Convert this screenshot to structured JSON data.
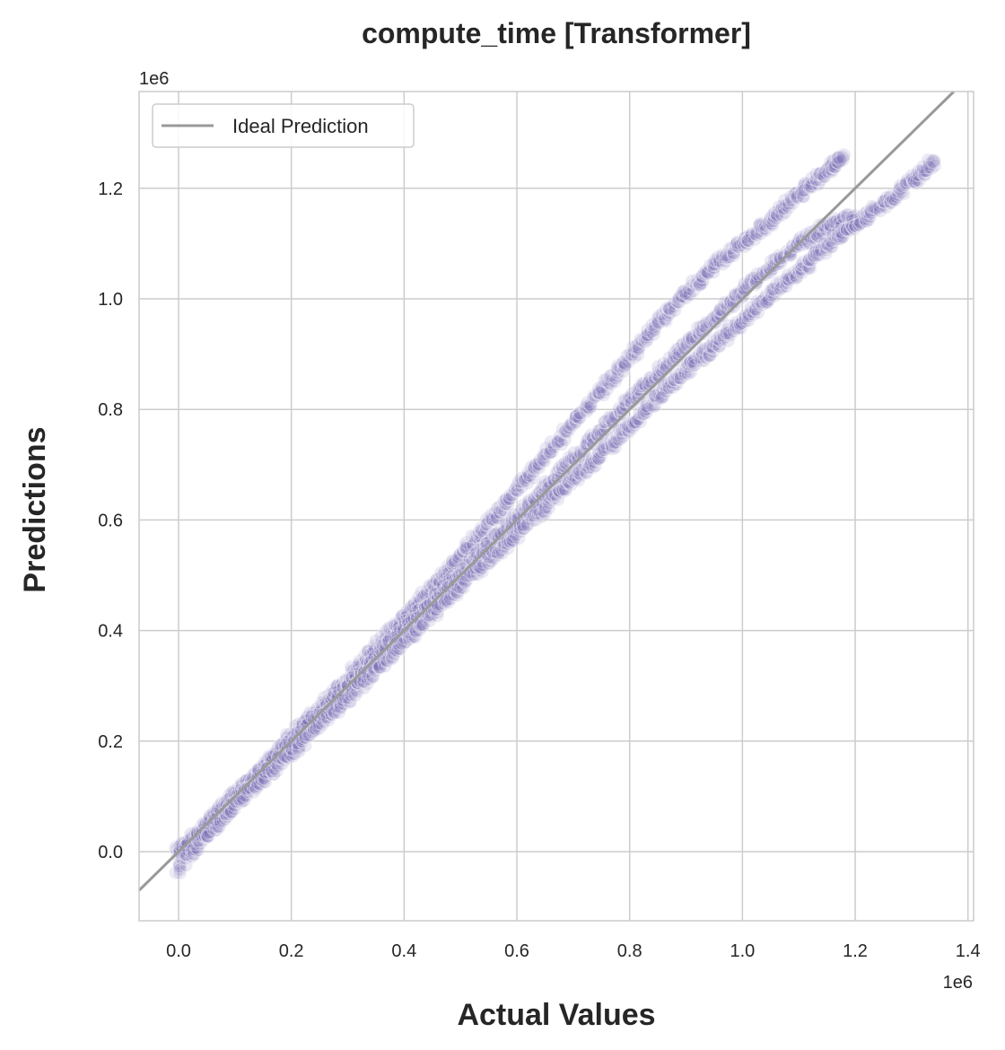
{
  "chart_data": {
    "type": "scatter",
    "title": "compute_time [Transformer]",
    "xlabel": "Actual Values",
    "ylabel": "Predictions",
    "x_offset_label": "1e6",
    "y_offset_label": "1e6",
    "xlim": [
      -0.07,
      1.41
    ],
    "ylim": [
      -0.125,
      1.375
    ],
    "xticks": [
      0.0,
      0.2,
      0.4,
      0.6,
      0.8,
      1.0,
      1.2,
      1.4
    ],
    "xtick_labels": [
      "0.0",
      "0.2",
      "0.4",
      "0.6",
      "0.8",
      "1.0",
      "1.2",
      "1.4"
    ],
    "yticks": [
      0.0,
      0.2,
      0.4,
      0.6,
      0.8,
      1.0,
      1.2
    ],
    "ytick_labels": [
      "0.0",
      "0.2",
      "0.4",
      "0.6",
      "0.8",
      "1.0",
      "1.2"
    ],
    "grid": true,
    "legend": {
      "position": "top-left",
      "entries": [
        "Ideal Prediction"
      ]
    },
    "ideal_line": {
      "name": "Ideal Prediction",
      "slope": 1,
      "intercept": 0,
      "color": "#999999"
    },
    "point_color": "#7b6bb5",
    "point_opacity": 0.15,
    "series": [
      {
        "name": "upper band",
        "x": [
          0.0,
          0.05,
          0.1,
          0.15,
          0.2,
          0.25,
          0.3,
          0.35,
          0.4,
          0.45,
          0.5,
          0.55,
          0.6,
          0.65,
          0.7,
          0.75,
          0.8,
          0.85,
          0.9,
          0.95,
          1.0,
          1.05,
          1.1,
          1.15,
          1.18
        ],
        "y": [
          0.0,
          0.05,
          0.1,
          0.15,
          0.21,
          0.26,
          0.315,
          0.37,
          0.425,
          0.48,
          0.535,
          0.595,
          0.655,
          0.715,
          0.775,
          0.835,
          0.895,
          0.955,
          1.01,
          1.06,
          1.1,
          1.14,
          1.19,
          1.23,
          1.26
        ]
      },
      {
        "name": "middle band",
        "x": [
          0.0,
          0.05,
          0.1,
          0.15,
          0.2,
          0.25,
          0.3,
          0.35,
          0.4,
          0.45,
          0.5,
          0.55,
          0.6,
          0.65,
          0.7,
          0.75,
          0.8,
          0.85,
          0.9,
          0.95,
          1.0,
          1.05,
          1.1,
          1.15,
          1.2
        ],
        "y": [
          0.0,
          0.05,
          0.1,
          0.15,
          0.2,
          0.25,
          0.3,
          0.35,
          0.405,
          0.455,
          0.505,
          0.555,
          0.605,
          0.655,
          0.71,
          0.76,
          0.815,
          0.865,
          0.915,
          0.965,
          1.015,
          1.06,
          1.1,
          1.13,
          1.15
        ]
      },
      {
        "name": "lower band",
        "x": [
          0.0,
          0.05,
          0.1,
          0.15,
          0.2,
          0.25,
          0.3,
          0.35,
          0.4,
          0.45,
          0.5,
          0.55,
          0.6,
          0.65,
          0.7,
          0.75,
          0.8,
          0.85,
          0.9,
          0.95,
          1.0,
          1.05,
          1.1,
          1.15,
          1.2,
          1.25,
          1.3,
          1.34
        ],
        "y": [
          -0.03,
          0.03,
          0.085,
          0.135,
          0.18,
          0.23,
          0.28,
          0.33,
          0.38,
          0.43,
          0.48,
          0.53,
          0.575,
          0.625,
          0.675,
          0.72,
          0.77,
          0.82,
          0.87,
          0.915,
          0.96,
          1.005,
          1.05,
          1.095,
          1.135,
          1.17,
          1.21,
          1.25
        ]
      }
    ]
  }
}
